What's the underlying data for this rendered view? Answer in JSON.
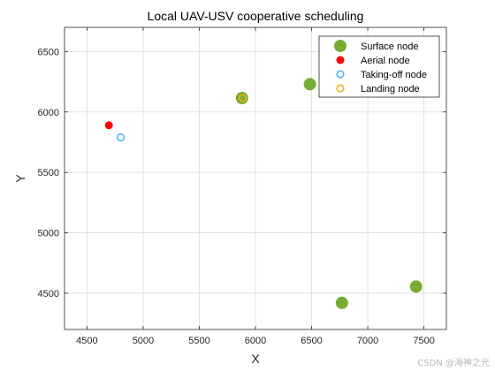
{
  "chart_data": {
    "type": "scatter",
    "title": "Local UAV-USV cooperative scheduling",
    "xlabel": "X",
    "ylabel": "Y",
    "xlim": [
      4300,
      7700
    ],
    "ylim": [
      4200,
      6700
    ],
    "xticks": [
      4500,
      5000,
      5500,
      6000,
      6500,
      7000,
      7500
    ],
    "yticks": [
      4500,
      5000,
      5500,
      6000,
      6500
    ],
    "grid": true,
    "legend_position": "top-right",
    "series": [
      {
        "name": "Surface node",
        "marker": "filled-circle-large",
        "color": "#77ac30",
        "points": [
          {
            "x": 5880,
            "y": 6115
          },
          {
            "x": 6485,
            "y": 6230
          },
          {
            "x": 6770,
            "y": 4420
          },
          {
            "x": 7430,
            "y": 4555
          }
        ]
      },
      {
        "name": "Aerial node",
        "marker": "filled-circle",
        "color": "#ff0000",
        "points": [
          {
            "x": 4695,
            "y": 5890
          }
        ]
      },
      {
        "name": "Taking-off node",
        "marker": "open-circle",
        "color": "#4dbeee",
        "points": [
          {
            "x": 4800,
            "y": 5790
          }
        ]
      },
      {
        "name": "Landing node",
        "marker": "open-circle",
        "color": "#edb120",
        "points": [
          {
            "x": 5885,
            "y": 6115
          }
        ]
      }
    ]
  },
  "watermark": "CSDN @海神之光"
}
